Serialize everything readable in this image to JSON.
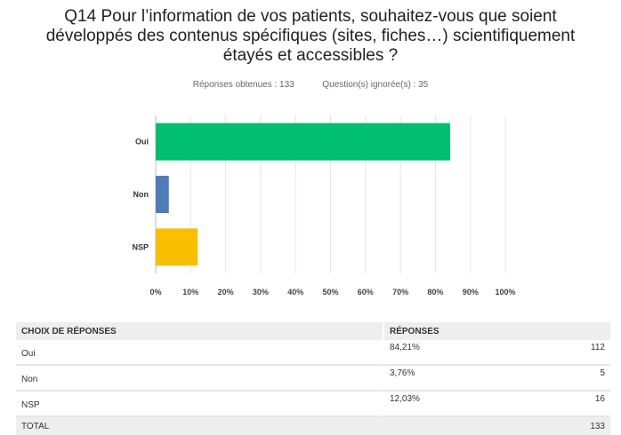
{
  "question": {
    "title_lines": [
      "Q14 Pour l’information de vos patients, souhaitez-vous que soient",
      "développés des contenus spécifiques (sites, fiches…) scientifiquement",
      "étayés et accessibles ?"
    ],
    "responses_label": "Réponses obtenues : 133",
    "ignored_label": "Question(s) ignorée(s) : 35"
  },
  "chart_data": {
    "type": "bar",
    "orientation": "horizontal",
    "categories": [
      "Oui",
      "Non",
      "NSP"
    ],
    "values": [
      84.21,
      3.76,
      12.03
    ],
    "colors": [
      "#00BF6F",
      "#507CB6",
      "#F9BE00"
    ],
    "xlim": [
      0,
      100
    ],
    "ticks": [
      "0%",
      "10%",
      "20%",
      "30%",
      "40%",
      "50%",
      "60%",
      "70%",
      "80%",
      "90%",
      "100%"
    ],
    "grid": true
  },
  "table": {
    "headers": [
      "CHOIX DE RÉPONSES",
      "RÉPONSES"
    ],
    "rows": [
      {
        "label": "Oui",
        "percent": "84,21%",
        "count": "112"
      },
      {
        "label": "Non",
        "percent": "3,76%",
        "count": "5"
      },
      {
        "label": "NSP",
        "percent": "12,03%",
        "count": "16"
      }
    ],
    "total_label": "TOTAL",
    "total_count": "133"
  }
}
